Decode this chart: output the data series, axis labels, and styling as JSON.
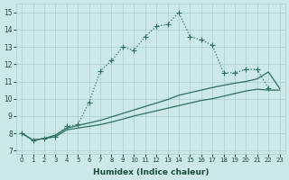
{
  "xlabel": "Humidex (Indice chaleur)",
  "background_color": "#cce8e8",
  "grid_color": "#aacece",
  "line_color": "#2a7060",
  "xlim": [
    -0.5,
    23.5
  ],
  "ylim": [
    6.8,
    15.5
  ],
  "xticks": [
    0,
    1,
    2,
    3,
    4,
    5,
    6,
    7,
    8,
    9,
    10,
    11,
    12,
    13,
    14,
    15,
    16,
    17,
    18,
    19,
    20,
    21,
    22,
    23
  ],
  "yticks": [
    7,
    8,
    9,
    10,
    11,
    12,
    13,
    14,
    15
  ],
  "curve_main_x": [
    0,
    1,
    2,
    3,
    4,
    5,
    6,
    7,
    8,
    9,
    10,
    11,
    12,
    13,
    14,
    15,
    16,
    17,
    18,
    19,
    20,
    21,
    22
  ],
  "curve_main_y": [
    8.0,
    7.6,
    7.7,
    7.8,
    8.4,
    8.5,
    9.8,
    11.6,
    12.2,
    13.0,
    12.8,
    13.6,
    14.2,
    14.3,
    15.0,
    13.6,
    13.4,
    13.1,
    11.5,
    11.5,
    11.7,
    11.7,
    10.6
  ],
  "curve_upper_x": [
    0,
    1,
    2,
    3,
    4,
    5,
    6,
    7,
    8,
    9,
    10,
    11,
    12,
    13,
    14,
    15,
    16,
    17,
    18,
    19,
    20,
    21,
    22,
    23
  ],
  "curve_upper_y": [
    8.0,
    7.6,
    7.7,
    7.9,
    8.3,
    8.45,
    8.6,
    8.75,
    8.95,
    9.15,
    9.35,
    9.55,
    9.75,
    9.95,
    10.2,
    10.35,
    10.5,
    10.65,
    10.78,
    10.9,
    11.0,
    11.15,
    11.55,
    10.6
  ],
  "curve_lower_x": [
    0,
    1,
    2,
    3,
    4,
    5,
    6,
    7,
    8,
    9,
    10,
    11,
    12,
    13,
    14,
    15,
    16,
    17,
    18,
    19,
    20,
    21,
    22,
    23
  ],
  "curve_lower_y": [
    8.0,
    7.6,
    7.7,
    7.8,
    8.2,
    8.3,
    8.4,
    8.5,
    8.65,
    8.82,
    9.0,
    9.15,
    9.3,
    9.45,
    9.6,
    9.75,
    9.9,
    10.0,
    10.15,
    10.3,
    10.45,
    10.55,
    10.5,
    10.5
  ],
  "markersize": 3,
  "linewidth": 0.9
}
